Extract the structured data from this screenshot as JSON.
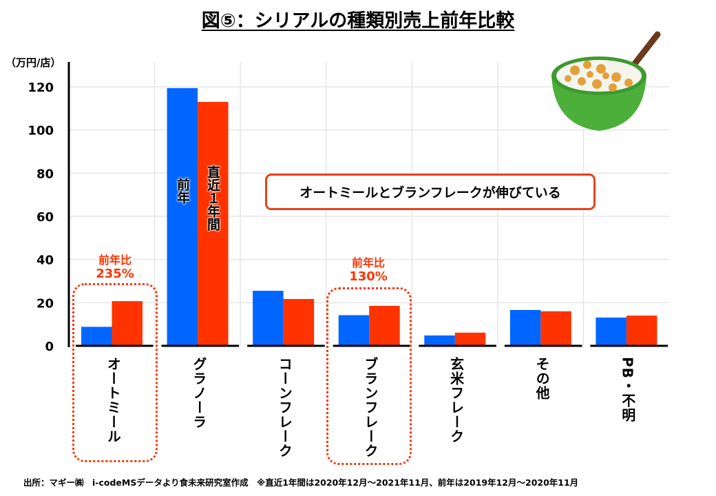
{
  "chart_data": {
    "type": "bar",
    "title": "図⑤：シリアルの種類別売上前年比較",
    "ylabel": "（万円/店）",
    "ylim": [
      0,
      120
    ],
    "yticks": [
      0,
      20,
      40,
      60,
      80,
      100,
      120
    ],
    "grid": true,
    "categories": [
      "オートミール",
      "グラノーラ",
      "コーンフレーク",
      "ブランフレーク",
      "玄米フレーク",
      "その他",
      "PB・不明"
    ],
    "series": [
      {
        "name": "前年",
        "color": "#0066ff",
        "values": [
          8.8,
          119.4,
          25.5,
          14.2,
          4.8,
          16.6,
          13.1
        ]
      },
      {
        "name": "直近1年間",
        "color": "#ff3300",
        "values": [
          20.7,
          113.0,
          21.7,
          18.5,
          6.1,
          16.0,
          14.0
        ]
      }
    ],
    "series_labels": [
      "前年",
      "直近１年間"
    ],
    "annotations": {
      "callout": "オートミールとブランフレークが伸びている",
      "ratios": [
        {
          "category": "オートミール",
          "label": "前年比",
          "value": "235%"
        },
        {
          "category": "ブランフレーク",
          "label": "前年比",
          "value": "130%"
        }
      ]
    }
  },
  "source": "出所：マギー㈱　i-codeMSデータより食未来研究室作成　※直近1年間は2020年12月～2021年11月、前年は2019年12月～2020年11月"
}
